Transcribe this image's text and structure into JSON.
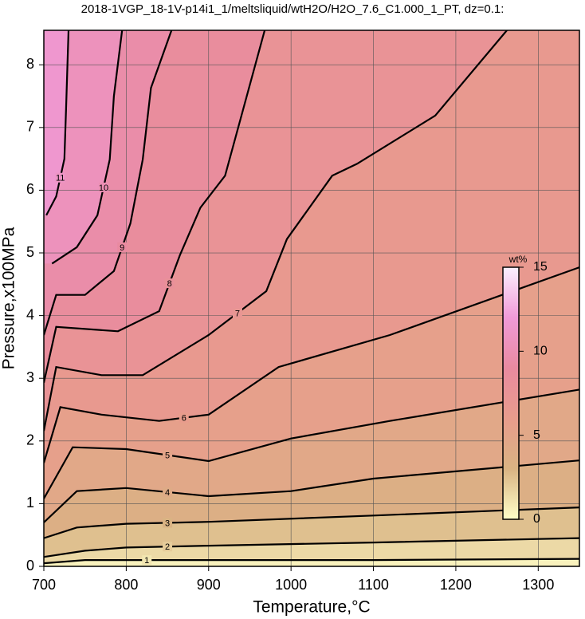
{
  "chart_data": {
    "type": "contour",
    "title": "2018-1VGP_18-1V-p14i1_1/meltsliquid/wtH2O/H2O_7.6_C1.000_1_PT, dz=0.1:",
    "x_label": "Temperature,°C",
    "y_label": "Pressure,x100MPa",
    "xlim": [
      700,
      1350
    ],
    "ylim": [
      0,
      8.55
    ],
    "xticks": [
      700,
      800,
      900,
      1000,
      1100,
      1200,
      1300
    ],
    "yticks": [
      0,
      1,
      2,
      3,
      4,
      5,
      6,
      7,
      8
    ],
    "grid": true,
    "colorbar": {
      "label": "wt%",
      "lim": [
        0,
        15
      ],
      "ticks": [
        0,
        5,
        10,
        15
      ],
      "colors": [
        "#ffffc8",
        "#d9b383",
        "#e89c8c",
        "#e98aa0",
        "#f09ad8",
        "#fbf0ff"
      ]
    },
    "contours": [
      {
        "level": 1,
        "x": [
          700,
          750,
          900,
          1100,
          1350
        ],
        "y": [
          0.05,
          0.1,
          0.1,
          0.1,
          0.12
        ]
      },
      {
        "level": 2,
        "x": [
          700,
          750,
          800,
          900,
          1100,
          1350
        ],
        "y": [
          0.15,
          0.25,
          0.3,
          0.33,
          0.38,
          0.45
        ]
      },
      {
        "level": 3,
        "x": [
          700,
          740,
          800,
          900,
          1100,
          1350
        ],
        "y": [
          0.45,
          0.62,
          0.68,
          0.71,
          0.81,
          0.94
        ]
      },
      {
        "level": 4,
        "x": [
          700,
          740,
          800,
          900,
          1000,
          1100,
          1350
        ],
        "y": [
          0.7,
          1.2,
          1.25,
          1.12,
          1.2,
          1.4,
          1.69
        ]
      },
      {
        "level": 5,
        "x": [
          700,
          735,
          800,
          900,
          1000,
          1120,
          1350
        ],
        "y": [
          1.08,
          1.9,
          1.87,
          1.68,
          2.04,
          2.32,
          2.82
        ]
      },
      {
        "level": 6,
        "x": [
          700,
          720,
          770,
          840,
          900,
          985,
          1120,
          1350
        ],
        "y": [
          1.65,
          2.54,
          2.42,
          2.32,
          2.42,
          3.18,
          3.69,
          4.77
        ]
      },
      {
        "level": 7,
        "x": [
          700,
          715,
          770,
          820,
          900,
          970,
          995,
          1050,
          1080,
          1175,
          1262
        ],
        "y": [
          2.16,
          3.18,
          3.05,
          3.05,
          3.69,
          4.39,
          5.22,
          6.23,
          6.42,
          7.19,
          8.55
        ]
      },
      {
        "level": 8,
        "x": [
          700,
          715,
          790,
          840,
          865,
          890,
          920,
          968
        ],
        "y": [
          2.93,
          3.82,
          3.75,
          4.07,
          4.96,
          5.72,
          6.23,
          8.55
        ]
      },
      {
        "level": 9,
        "x": [
          700,
          715,
          750,
          785,
          805,
          820,
          830,
          855
        ],
        "y": [
          3.69,
          4.33,
          4.33,
          4.71,
          5.47,
          6.49,
          7.63,
          8.55
        ]
      },
      {
        "level": 10,
        "x": [
          710,
          740,
          765,
          780,
          785,
          795
        ],
        "y": [
          4.83,
          5.09,
          5.6,
          6.49,
          7.5,
          8.55
        ]
      },
      {
        "level": 11,
        "x": [
          703,
          715,
          725,
          727,
          730
        ],
        "y": [
          5.6,
          5.9,
          6.5,
          7.3,
          8.55
        ]
      }
    ]
  }
}
